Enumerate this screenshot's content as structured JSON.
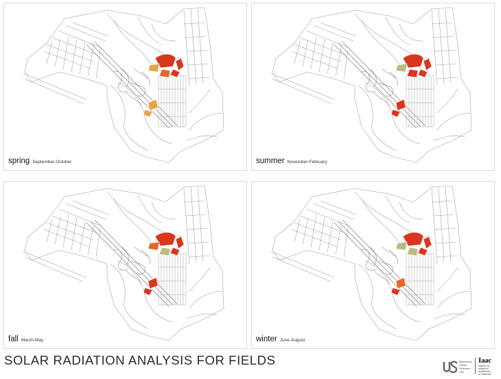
{
  "panels": [
    {
      "season": "spring",
      "months": "September-October"
    },
    {
      "season": "summer",
      "months": "November-February"
    },
    {
      "season": "fall",
      "months": "March-May"
    },
    {
      "season": "winter",
      "months": "June-August"
    }
  ],
  "title": "SOLAR RADIATION ANALYSIS FOR FIELDS",
  "logos": {
    "usl_text": [
      "Barcelona",
      "Urban",
      "Sciences",
      "Lab"
    ],
    "iaac_mark": "Iaac",
    "iaac_text": [
      "Institute for",
      "advanced",
      "architecture",
      "of Catalonia"
    ]
  },
  "legend_colors": {
    "high": "#d9361f",
    "medium": "#e8662a",
    "low": "#e7a24a",
    "lowest": "#b9bb84"
  },
  "field_levels": {
    "spring": [
      "high",
      "high",
      "high",
      "medium",
      "low",
      "low",
      "low"
    ],
    "summer": [
      "high",
      "high",
      "high",
      "high",
      "lowest",
      "high",
      "high"
    ],
    "fall": [
      "high",
      "high",
      "high",
      "lowest",
      "medium",
      "high",
      "high"
    ],
    "winter": [
      "high",
      "high",
      "high",
      "lowest",
      "lowest",
      "medium",
      "high"
    ]
  }
}
